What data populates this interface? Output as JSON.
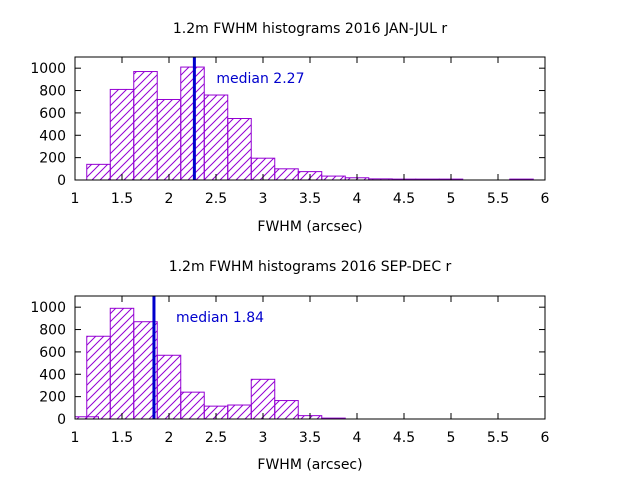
{
  "colors": {
    "bar": "#9400d3",
    "median": "#0000cd",
    "axis": "#000000",
    "background": "#ffffff"
  },
  "chart_data": [
    {
      "type": "bar",
      "title": "1.2m FWHM histograms 2016 JAN-JUL r",
      "xlabel": "FWHM (arcsec)",
      "ylabel": "",
      "xlim": [
        1,
        6
      ],
      "ylim": [
        0,
        1100
      ],
      "xticks": [
        "1",
        "1.5",
        "2",
        "2.5",
        "3",
        "3.5",
        "4",
        "4.5",
        "5",
        "5.5",
        "6"
      ],
      "yticks": [
        "0",
        "200",
        "400",
        "600",
        "800",
        "1000"
      ],
      "bin_width": 0.25,
      "bins": [
        {
          "x0": 1.125,
          "value": 140
        },
        {
          "x0": 1.375,
          "value": 810
        },
        {
          "x0": 1.625,
          "value": 970
        },
        {
          "x0": 1.875,
          "value": 720
        },
        {
          "x0": 2.125,
          "value": 1010
        },
        {
          "x0": 2.375,
          "value": 760
        },
        {
          "x0": 2.625,
          "value": 550
        },
        {
          "x0": 2.875,
          "value": 195
        },
        {
          "x0": 3.125,
          "value": 100
        },
        {
          "x0": 3.375,
          "value": 75
        },
        {
          "x0": 3.625,
          "value": 35
        },
        {
          "x0": 3.875,
          "value": 20
        },
        {
          "x0": 4.125,
          "value": 10
        },
        {
          "x0": 4.375,
          "value": 8
        },
        {
          "x0": 4.625,
          "value": 8
        },
        {
          "x0": 4.875,
          "value": 8
        },
        {
          "x0": 5.625,
          "value": 8
        }
      ],
      "median": {
        "value": 2.27,
        "label": "median 2.27"
      },
      "grid": false
    },
    {
      "type": "bar",
      "title": "1.2m FWHM histograms 2016 SEP-DEC r",
      "xlabel": "FWHM (arcsec)",
      "ylabel": "",
      "xlim": [
        1,
        6
      ],
      "ylim": [
        0,
        1100
      ],
      "xticks": [
        "1",
        "1.5",
        "2",
        "2.5",
        "3",
        "3.5",
        "4",
        "4.5",
        "5",
        "5.5",
        "6"
      ],
      "yticks": [
        "0",
        "200",
        "400",
        "600",
        "800",
        "1000"
      ],
      "bin_width": 0.25,
      "bins": [
        {
          "x0": 1.0,
          "value": 20
        },
        {
          "x0": 1.125,
          "value": 740
        },
        {
          "x0": 1.375,
          "value": 990
        },
        {
          "x0": 1.625,
          "value": 870
        },
        {
          "x0": 1.875,
          "value": 570
        },
        {
          "x0": 2.125,
          "value": 240
        },
        {
          "x0": 2.375,
          "value": 115
        },
        {
          "x0": 2.625,
          "value": 125
        },
        {
          "x0": 2.875,
          "value": 355
        },
        {
          "x0": 3.125,
          "value": 165
        },
        {
          "x0": 3.375,
          "value": 30
        },
        {
          "x0": 3.625,
          "value": 8
        }
      ],
      "median": {
        "value": 1.84,
        "label": "median 1.84"
      },
      "grid": false
    }
  ]
}
